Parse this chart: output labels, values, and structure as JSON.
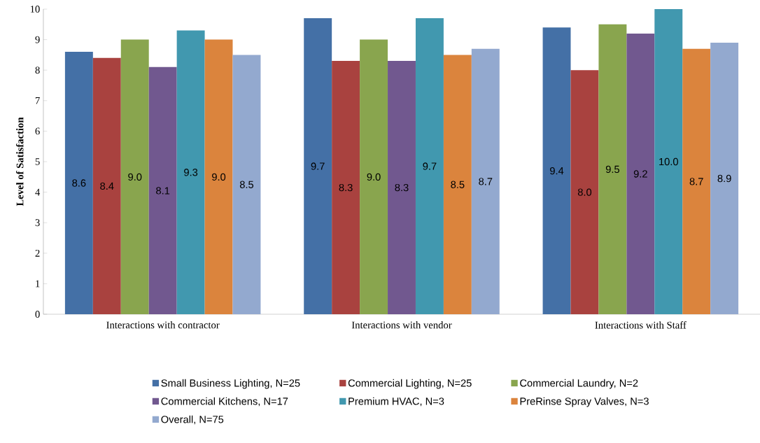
{
  "chart_data": {
    "type": "bar",
    "ylabel": "Level of Satisfaction",
    "categories": [
      "Interactions with contractor",
      "Interactions with vendor",
      "Interactions with Staff"
    ],
    "series": [
      {
        "name": "Small Business Lighting, N=25",
        "color": "#4470a6",
        "values": [
          8.6,
          9.7,
          9.4
        ],
        "value_labels": [
          "8.6",
          "9.7",
          "9.4"
        ]
      },
      {
        "name": "Commercial Lighting, N=25",
        "color": "#a9423f",
        "values": [
          8.4,
          8.3,
          8.0
        ],
        "value_labels": [
          "8.4",
          "8.3",
          "8.0"
        ]
      },
      {
        "name": "Commercial Laundry, N=2",
        "color": "#89a54e",
        "values": [
          9.0,
          9.0,
          9.5
        ],
        "value_labels": [
          "9.0",
          "9.0",
          "9.5"
        ]
      },
      {
        "name": "Commercial Kitchens, N=17",
        "color": "#71588f",
        "values": [
          8.1,
          8.3,
          9.2
        ],
        "value_labels": [
          "8.1",
          "8.3",
          "9.2"
        ]
      },
      {
        "name": "Premium HVAC, N=3",
        "color": "#4198af",
        "values": [
          9.3,
          9.7,
          10.0
        ],
        "value_labels": [
          "9.3",
          "9.7",
          "10.0"
        ]
      },
      {
        "name": "PreRinse Spray Valves, N=3",
        "color": "#db843d",
        "values": [
          9.0,
          8.5,
          8.7
        ],
        "value_labels": [
          "9.0",
          "8.5",
          "8.7"
        ]
      },
      {
        "name": "Overall, N=75",
        "color": "#93a9cf",
        "values": [
          8.5,
          8.7,
          8.9
        ],
        "value_labels": [
          "8.5",
          "8.7",
          "8.9"
        ]
      }
    ],
    "ylim": [
      0,
      10
    ],
    "yticks": [
      0,
      1,
      2,
      3,
      4,
      5,
      6,
      7,
      8,
      9,
      10
    ],
    "legend": "bottom"
  }
}
